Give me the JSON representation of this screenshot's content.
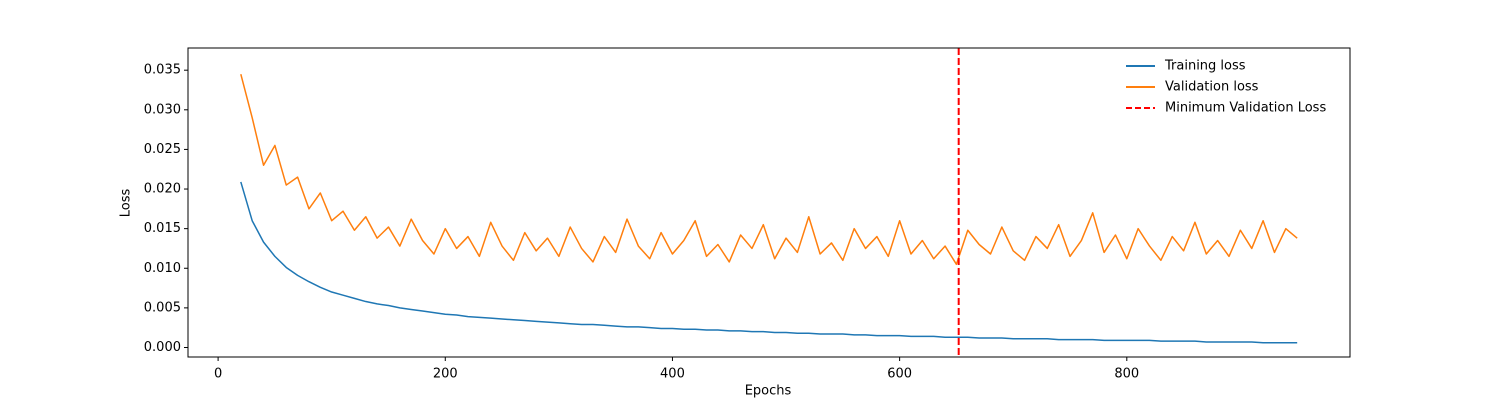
{
  "chart_data": {
    "type": "line",
    "xlabel": "Epochs",
    "ylabel": "Loss",
    "x": [
      20,
      30,
      40,
      50,
      60,
      70,
      80,
      90,
      100,
      110,
      120,
      130,
      140,
      150,
      160,
      170,
      180,
      190,
      200,
      210,
      220,
      230,
      240,
      250,
      260,
      270,
      280,
      290,
      300,
      310,
      320,
      330,
      340,
      350,
      360,
      370,
      380,
      390,
      400,
      410,
      420,
      430,
      440,
      450,
      460,
      470,
      480,
      490,
      500,
      510,
      520,
      530,
      540,
      550,
      560,
      570,
      580,
      590,
      600,
      610,
      620,
      630,
      640,
      650,
      660,
      670,
      680,
      690,
      700,
      710,
      720,
      730,
      740,
      750,
      760,
      770,
      780,
      790,
      800,
      810,
      820,
      830,
      840,
      850,
      860,
      870,
      880,
      890,
      900,
      910,
      920,
      930,
      940,
      950
    ],
    "series": [
      {
        "name": "Training loss",
        "color": "#1f77b4",
        "values": [
          0.0209,
          0.016,
          0.0133,
          0.0115,
          0.0101,
          0.0091,
          0.0083,
          0.0076,
          0.007,
          0.0066,
          0.0062,
          0.0058,
          0.0055,
          0.0053,
          0.005,
          0.0048,
          0.0046,
          0.0044,
          0.0042,
          0.0041,
          0.0039,
          0.0038,
          0.0037,
          0.0036,
          0.0035,
          0.0034,
          0.0033,
          0.0032,
          0.0031,
          0.003,
          0.0029,
          0.0029,
          0.0028,
          0.0027,
          0.0026,
          0.0026,
          0.0025,
          0.0024,
          0.0024,
          0.0023,
          0.0023,
          0.0022,
          0.0022,
          0.0021,
          0.0021,
          0.002,
          0.002,
          0.0019,
          0.0019,
          0.0018,
          0.0018,
          0.0017,
          0.0017,
          0.0017,
          0.0016,
          0.0016,
          0.0015,
          0.0015,
          0.0015,
          0.0014,
          0.0014,
          0.0014,
          0.0013,
          0.0013,
          0.0013,
          0.0012,
          0.0012,
          0.0012,
          0.0011,
          0.0011,
          0.0011,
          0.0011,
          0.001,
          0.001,
          0.001,
          0.001,
          0.0009,
          0.0009,
          0.0009,
          0.0009,
          0.0009,
          0.0008,
          0.0008,
          0.0008,
          0.0008,
          0.0007,
          0.0007,
          0.0007,
          0.0007,
          0.0007,
          0.0006,
          0.0006,
          0.0006,
          0.0006
        ]
      },
      {
        "name": "Validation loss",
        "color": "#ff7f0e",
        "values": [
          0.0345,
          0.029,
          0.023,
          0.0255,
          0.0205,
          0.0215,
          0.0175,
          0.0195,
          0.016,
          0.0172,
          0.0148,
          0.0165,
          0.0138,
          0.0152,
          0.0128,
          0.0162,
          0.0135,
          0.0118,
          0.015,
          0.0125,
          0.014,
          0.0115,
          0.0158,
          0.0128,
          0.011,
          0.0145,
          0.0122,
          0.0138,
          0.0115,
          0.0152,
          0.0125,
          0.0108,
          0.014,
          0.012,
          0.0162,
          0.0128,
          0.0112,
          0.0145,
          0.0118,
          0.0135,
          0.016,
          0.0115,
          0.013,
          0.0108,
          0.0142,
          0.0125,
          0.0155,
          0.0112,
          0.0138,
          0.012,
          0.0165,
          0.0118,
          0.0132,
          0.011,
          0.015,
          0.0125,
          0.014,
          0.0115,
          0.016,
          0.0118,
          0.0135,
          0.0112,
          0.0128,
          0.0105,
          0.0148,
          0.013,
          0.0118,
          0.0152,
          0.0122,
          0.011,
          0.014,
          0.0125,
          0.0155,
          0.0115,
          0.0135,
          0.017,
          0.012,
          0.0142,
          0.0112,
          0.015,
          0.0128,
          0.011,
          0.014,
          0.0122,
          0.0158,
          0.0118,
          0.0135,
          0.0115,
          0.0148,
          0.0125,
          0.016,
          0.012,
          0.015,
          0.0138
        ]
      }
    ],
    "vline": {
      "name": "Minimum Validation Loss",
      "x": 652,
      "color": "red"
    },
    "xlim": [
      -26.5,
      996.5
    ],
    "ylim": [
      -0.0012,
      0.0378
    ],
    "xticks": [
      0,
      200,
      400,
      600,
      800
    ],
    "yticks": [
      {
        "value": 0,
        "label": "0.000"
      },
      {
        "value": 0.005,
        "label": "0.005"
      },
      {
        "value": 0.01,
        "label": "0.010"
      },
      {
        "value": 0.015,
        "label": "0.015"
      },
      {
        "value": 0.02,
        "label": "0.020"
      },
      {
        "value": 0.025,
        "label": "0.025"
      },
      {
        "value": 0.03,
        "label": "0.030"
      },
      {
        "value": 0.035,
        "label": "0.035"
      }
    ],
    "grid": false,
    "legend": "upper right"
  }
}
